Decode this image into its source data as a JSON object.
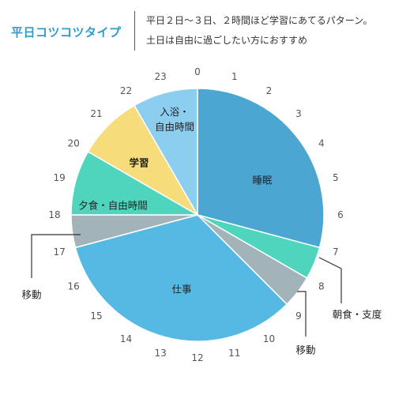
{
  "header": {
    "title": "平日コツコツタイプ",
    "desc_line1": "平日２日〜３日、２時間ほど学習にあてるパターン。",
    "desc_line2": "土日は自由に過ごしたい方におすすめ"
  },
  "chart_data": {
    "type": "pie",
    "unit": "hour",
    "hour_labels": [
      "0",
      "1",
      "2",
      "3",
      "4",
      "5",
      "6",
      "7",
      "8",
      "9",
      "10",
      "11",
      "12",
      "13",
      "14",
      "15",
      "16",
      "17",
      "18",
      "19",
      "20",
      "21",
      "22",
      "23"
    ],
    "slices": [
      {
        "label": "睡眠",
        "start": 0,
        "end": 7,
        "color": "#4BA6D2"
      },
      {
        "label": "朝食・支度",
        "start": 7,
        "end": 8,
        "color": "#4FD5BE"
      },
      {
        "label": "移動",
        "start": 8,
        "end": 9,
        "color": "#A3B3BA"
      },
      {
        "label": "仕事",
        "start": 9,
        "end": 17,
        "color": "#55B9E3"
      },
      {
        "label": "移動",
        "start": 17,
        "end": 18,
        "color": "#A3B3BA"
      },
      {
        "label": "夕食・自由時間",
        "start": 18,
        "end": 20,
        "color": "#4FD5BE"
      },
      {
        "label": "学習",
        "start": 20,
        "end": 22,
        "color": "#F6DC7A"
      },
      {
        "label": "入浴・自由時間",
        "start": 22,
        "end": 24,
        "color": "#8CCEF0"
      }
    ]
  }
}
